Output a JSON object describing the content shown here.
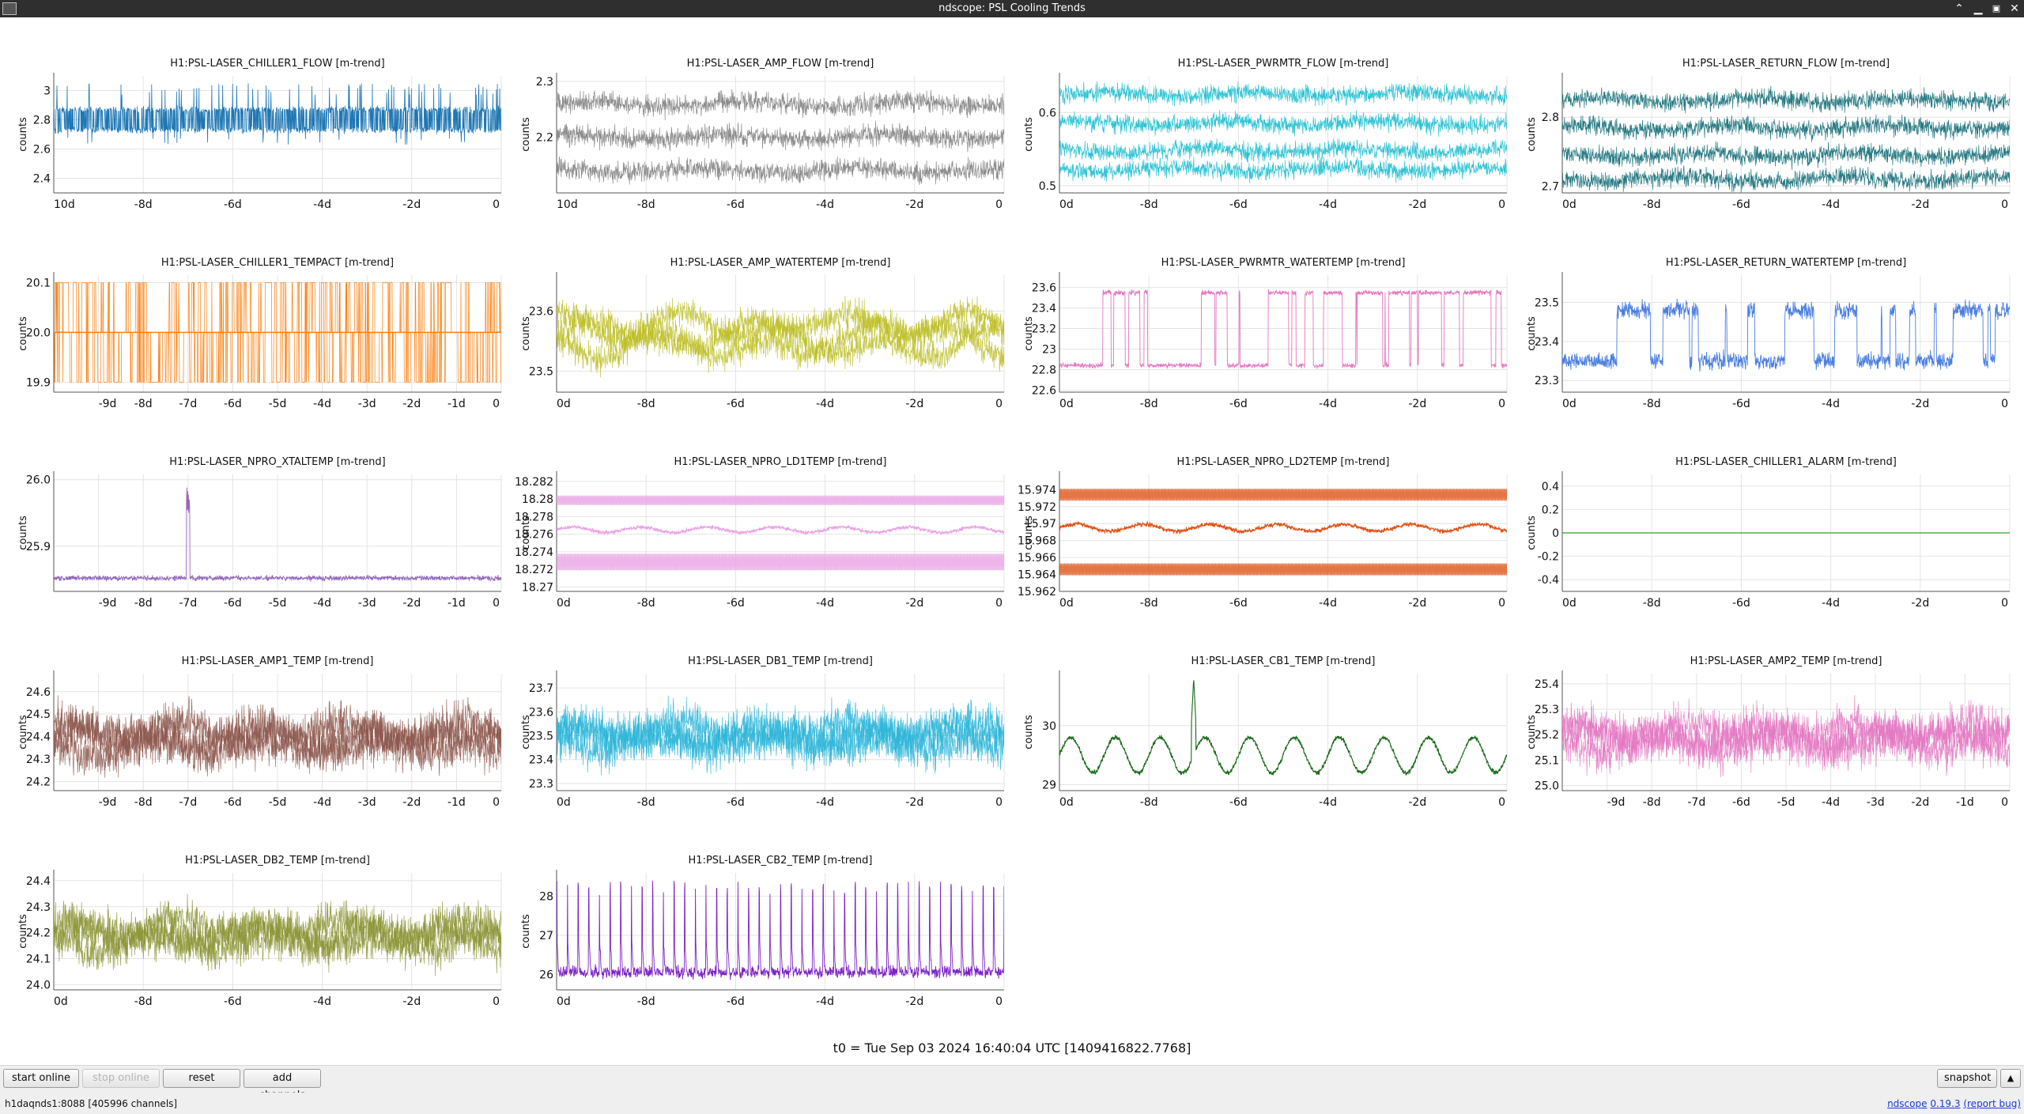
{
  "window": {
    "title": "ndscope: PSL Cooling Trends"
  },
  "t0_label": "t0 = Tue Sep 03 2024 16:40:04 UTC [1409416822.7768]",
  "toolbar": {
    "start_online": "start online",
    "stop_online": "stop online",
    "reset": "reset",
    "add_channels": "add channels",
    "snapshot": "snapshot"
  },
  "status": {
    "server": "h1daqnds1:8088",
    "channels": "[405996 channels]",
    "app_name": "ndscope",
    "version": "0.19.3",
    "report_bug": "(report bug)"
  },
  "plots": [
    {
      "title": "H1:PSL-LASER_CHILLER1_FLOW [m-trend]",
      "color": "#1f77b4",
      "ylabel": "counts",
      "x_ticks": [
        "10d",
        "-8d",
        "-6d",
        "-4d",
        "-2d",
        "0"
      ],
      "x_tick_values": [
        -10,
        -8,
        -6,
        -4,
        -2,
        0
      ],
      "y_ticks": [
        "2.4",
        "2.6",
        "2.8",
        "3"
      ],
      "y_tick_values": [
        2.4,
        2.6,
        2.8,
        3.0
      ],
      "ylim": [
        2.3,
        3.1
      ],
      "pattern": "dense_band",
      "band": [
        2.72,
        2.88
      ],
      "noise": 0.05,
      "spike_top": 3.05,
      "spike_bottom": 2.63
    },
    {
      "title": "H1:PSL-LASER_AMP_FLOW [m-trend]",
      "color": "#7f7f7f",
      "ylabel": "counts",
      "x_ticks": [
        "10d",
        "-8d",
        "-6d",
        "-4d",
        "-2d",
        "0"
      ],
      "x_tick_values": [
        -10,
        -8,
        -6,
        -4,
        -2,
        0
      ],
      "y_ticks": [
        "2.2",
        "2.3"
      ],
      "y_tick_values": [
        2.2,
        2.3
      ],
      "ylim": [
        2.1,
        2.31
      ],
      "pattern": "multiband",
      "levels": [
        2.26,
        2.2,
        2.14
      ],
      "noise": 0.015
    },
    {
      "title": "H1:PSL-LASER_PWRMTR_FLOW [m-trend]",
      "color": "#17becf",
      "ylabel": "counts",
      "x_ticks": [
        "0d",
        "-8d",
        "-6d",
        "-4d",
        "-2d",
        "0"
      ],
      "x_tick_values": [
        -10,
        -8,
        -6,
        -4,
        -2,
        0
      ],
      "y_ticks": [
        "0.5",
        "0.6"
      ],
      "y_tick_values": [
        0.5,
        0.6
      ],
      "ylim": [
        0.49,
        0.65
      ],
      "pattern": "multiband",
      "levels": [
        0.625,
        0.585,
        0.548,
        0.522
      ],
      "noise": 0.01
    },
    {
      "title": "H1:PSL-LASER_RETURN_FLOW [m-trend]",
      "color": "#0f6b75",
      "ylabel": "counts",
      "x_ticks": [
        "0d",
        "-8d",
        "-6d",
        "-4d",
        "-2d",
        "0"
      ],
      "x_tick_values": [
        -10,
        -8,
        -6,
        -4,
        -2,
        0
      ],
      "y_ticks": [
        "2.7",
        "2.8"
      ],
      "y_tick_values": [
        2.7,
        2.8
      ],
      "ylim": [
        2.69,
        2.86
      ],
      "pattern": "multiband",
      "levels": [
        2.825,
        2.785,
        2.745,
        2.71
      ],
      "noise": 0.011
    },
    {
      "title": "H1:PSL-LASER_CHILLER1_TEMPACT [m-trend]",
      "color": "#ff7f0e",
      "ylabel": "counts",
      "x_ticks": [
        "-9d",
        "-8d",
        "-7d",
        "-6d",
        "-5d",
        "-4d",
        "-3d",
        "-2d",
        "-1d",
        "0"
      ],
      "x_tick_values": [
        -9,
        -8,
        -7,
        -6,
        -5,
        -4,
        -3,
        -2,
        -1,
        0
      ],
      "y_ticks": [
        "19.9",
        "20.0",
        "20.1"
      ],
      "y_tick_values": [
        19.9,
        20.0,
        20.1
      ],
      "ylim": [
        19.88,
        20.115
      ],
      "pattern": "digital",
      "levels": [
        19.9,
        20.0,
        20.1
      ]
    },
    {
      "title": "H1:PSL-LASER_AMP_WATERTEMP [m-trend]",
      "color": "#bcbd22",
      "ylabel": "counts",
      "x_ticks": [
        "0d",
        "-8d",
        "-6d",
        "-4d",
        "-2d",
        "0"
      ],
      "x_tick_values": [
        -10,
        -8,
        -6,
        -4,
        -2,
        0
      ],
      "y_ticks": [
        "23.5",
        "23.6"
      ],
      "y_tick_values": [
        23.5,
        23.6
      ],
      "ylim": [
        23.465,
        23.66
      ],
      "pattern": "noisy_wander",
      "base": 23.56,
      "wander": 0.025,
      "noise": 0.02
    },
    {
      "title": "H1:PSL-LASER_PWRMTR_WATERTEMP [m-trend]",
      "color": "#e377c2",
      "ylabel": "counts",
      "x_ticks": [
        "0d",
        "-8d",
        "-6d",
        "-4d",
        "-2d",
        "0"
      ],
      "x_tick_values": [
        -10,
        -8,
        -6,
        -4,
        -2,
        0
      ],
      "y_ticks": [
        "22.6",
        "22.8",
        "23",
        "23.2",
        "23.4",
        "23.6"
      ],
      "y_tick_values": [
        22.6,
        22.8,
        23.0,
        23.2,
        23.4,
        23.6
      ],
      "ylim": [
        22.58,
        23.72
      ],
      "pattern": "square",
      "low": 22.84,
      "high": 23.55,
      "noise": 0.02
    },
    {
      "title": "H1:PSL-LASER_RETURN_WATERTEMP [m-trend]",
      "color": "#4c7fe0",
      "ylabel": "counts",
      "x_ticks": [
        "0d",
        "-8d",
        "-6d",
        "-4d",
        "-2d",
        "0"
      ],
      "x_tick_values": [
        -10,
        -8,
        -6,
        -4,
        -2,
        0
      ],
      "y_ticks": [
        "23.3",
        "23.4",
        "23.5"
      ],
      "y_tick_values": [
        23.3,
        23.4,
        23.5
      ],
      "ylim": [
        23.27,
        23.57
      ],
      "pattern": "square",
      "low": 23.35,
      "high": 23.48,
      "noise": 0.018
    },
    {
      "title": "H1:PSL-LASER_NPRO_XTALTEMP [m-trend]",
      "color": "#9467bd",
      "ylabel": "counts",
      "x_ticks": [
        "-9d",
        "-8d",
        "-7d",
        "-6d",
        "-5d",
        "-4d",
        "-3d",
        "-2d",
        "-1d",
        "0"
      ],
      "x_tick_values": [
        -9,
        -8,
        -7,
        -6,
        -5,
        -4,
        -3,
        -2,
        -1,
        0
      ],
      "y_ticks": [
        "25.9",
        "26.0"
      ],
      "y_tick_values": [
        25.9,
        26.0
      ],
      "ylim": [
        25.832,
        26.008
      ],
      "pattern": "flat_spike",
      "base": 25.852,
      "noise": 0.003,
      "spike_x": -7.0,
      "spike_y": 25.99
    },
    {
      "title": "H1:PSL-LASER_NPRO_LD1TEMP [m-trend]",
      "color": "#e8a3e3",
      "ylabel": "counts",
      "x_ticks": [
        "0d",
        "-8d",
        "-6d",
        "-4d",
        "-2d",
        "0"
      ],
      "x_tick_values": [
        -10,
        -8,
        -6,
        -4,
        -2,
        0
      ],
      "y_ticks": [
        "18.27",
        "18.272",
        "18.274",
        "18.276",
        "18.278",
        "18.28",
        "18.282"
      ],
      "y_tick_values": [
        18.27,
        18.272,
        18.274,
        18.276,
        18.278,
        18.28,
        18.282
      ],
      "ylim": [
        18.2695,
        18.2828
      ],
      "pattern": "quantized",
      "bands": [
        [
          18.2793,
          18.2804
        ],
        [
          18.2719,
          18.2738
        ]
      ],
      "mid": 18.2765,
      "mid_noise": 0.0004
    },
    {
      "title": "H1:PSL-LASER_NPRO_LD2TEMP [m-trend]",
      "color": "#dd5417",
      "ylabel": "counts",
      "x_ticks": [
        "0d",
        "-8d",
        "-6d",
        "-4d",
        "-2d",
        "0"
      ],
      "x_tick_values": [
        -10,
        -8,
        -6,
        -4,
        -2,
        0
      ],
      "y_ticks": [
        "15.962",
        "15.964",
        "15.966",
        "15.968",
        "15.97",
        "15.972",
        "15.974"
      ],
      "y_tick_values": [
        15.962,
        15.964,
        15.966,
        15.968,
        15.97,
        15.972,
        15.974
      ],
      "ylim": [
        15.962,
        15.9758
      ],
      "pattern": "quantized",
      "bands": [
        [
          15.9727,
          15.9741
        ],
        [
          15.9639,
          15.9653
        ]
      ],
      "mid": 15.9695,
      "mid_noise": 0.0005
    },
    {
      "title": "H1:PSL-LASER_CHILLER1_ALARM [m-trend]",
      "color": "#2ca02c",
      "ylabel": "counts",
      "x_ticks": [
        "0d",
        "-8d",
        "-6d",
        "-4d",
        "-2d",
        "0"
      ],
      "x_tick_values": [
        -10,
        -8,
        -6,
        -4,
        -2,
        0
      ],
      "y_ticks": [
        "-0.4",
        "-0.2",
        "0",
        "0.2",
        "0.4"
      ],
      "y_tick_values": [
        -0.4,
        -0.2,
        0,
        0.2,
        0.4
      ],
      "ylim": [
        -0.5,
        0.5
      ],
      "pattern": "flat",
      "base": 0
    },
    {
      "title": "H1:PSL-LASER_AMP1_TEMP [m-trend]",
      "color": "#8c564b",
      "ylabel": "counts",
      "x_ticks": [
        "-9d",
        "-8d",
        "-7d",
        "-6d",
        "-5d",
        "-4d",
        "-3d",
        "-2d",
        "-1d",
        "0"
      ],
      "x_tick_values": [
        -9,
        -8,
        -7,
        -6,
        -5,
        -4,
        -3,
        -2,
        -1,
        0
      ],
      "y_ticks": [
        "24.2",
        "24.3",
        "24.4",
        "24.5",
        "24.6"
      ],
      "y_tick_values": [
        24.2,
        24.3,
        24.4,
        24.5,
        24.6
      ],
      "ylim": [
        24.16,
        24.68
      ],
      "pattern": "noisy_wander",
      "base": 24.39,
      "wander": 0.05,
      "noise": 0.075
    },
    {
      "title": "H1:PSL-LASER_DB1_TEMP [m-trend]",
      "color": "#2bb5d8",
      "ylabel": "counts",
      "x_ticks": [
        "0d",
        "-8d",
        "-6d",
        "-4d",
        "-2d",
        "0"
      ],
      "x_tick_values": [
        -10,
        -8,
        -6,
        -4,
        -2,
        0
      ],
      "y_ticks": [
        "23.3",
        "23.4",
        "23.5",
        "23.6",
        "23.7"
      ],
      "y_tick_values": [
        23.3,
        23.4,
        23.5,
        23.6,
        23.7
      ],
      "ylim": [
        23.27,
        23.76
      ],
      "pattern": "noisy_wander",
      "base": 23.5,
      "wander": 0.04,
      "noise": 0.07
    },
    {
      "title": "H1:PSL-LASER_CB1_TEMP [m-trend]",
      "color": "#1a6b1a",
      "ylabel": "counts",
      "x_ticks": [
        "0d",
        "-8d",
        "-6d",
        "-4d",
        "-2d",
        "0"
      ],
      "x_tick_values": [
        -10,
        -8,
        -6,
        -4,
        -2,
        0
      ],
      "y_ticks": [
        "29",
        "30"
      ],
      "y_tick_values": [
        29,
        30
      ],
      "ylim": [
        28.9,
        30.88
      ],
      "pattern": "daily_wave",
      "base": 29.5,
      "amp": 0.3,
      "noise": 0.03,
      "spike_x": -7.0,
      "spike_y": 30.8
    },
    {
      "title": "H1:PSL-LASER_AMP2_TEMP [m-trend]",
      "color": "#e377c2",
      "ylabel": "counts",
      "x_ticks": [
        "-9d",
        "-8d",
        "-7d",
        "-6d",
        "-5d",
        "-4d",
        "-3d",
        "-2d",
        "-1d",
        "0"
      ],
      "x_tick_values": [
        -9,
        -8,
        -7,
        -6,
        -5,
        -4,
        -3,
        -2,
        -1,
        0
      ],
      "y_ticks": [
        "25.0",
        "25.1",
        "25.2",
        "25.3",
        "25.4"
      ],
      "y_tick_values": [
        25.0,
        25.1,
        25.2,
        25.3,
        25.4
      ],
      "ylim": [
        24.98,
        25.44
      ],
      "pattern": "noisy_wander",
      "base": 25.19,
      "wander": 0.04,
      "noise": 0.065
    },
    {
      "title": "H1:PSL-LASER_DB2_TEMP [m-trend]",
      "color": "#8b9434",
      "ylabel": "counts",
      "x_ticks": [
        "0d",
        "-8d",
        "-6d",
        "-4d",
        "-2d",
        "0"
      ],
      "x_tick_values": [
        -10,
        -8,
        -6,
        -4,
        -2,
        0
      ],
      "y_ticks": [
        "24.0",
        "24.1",
        "24.2",
        "24.3",
        "24.4"
      ],
      "y_tick_values": [
        24.0,
        24.1,
        24.2,
        24.3,
        24.4
      ],
      "ylim": [
        23.98,
        24.43
      ],
      "pattern": "noisy_wander",
      "base": 24.19,
      "wander": 0.04,
      "noise": 0.06
    },
    {
      "title": "H1:PSL-LASER_CB2_TEMP [m-trend]",
      "color": "#7b22c4",
      "ylabel": "counts",
      "x_ticks": [
        "0d",
        "-8d",
        "-6d",
        "-4d",
        "-2d",
        "0"
      ],
      "x_tick_values": [
        -10,
        -8,
        -6,
        -4,
        -2,
        0
      ],
      "y_ticks": [
        "26",
        "27",
        "28"
      ],
      "y_tick_values": [
        26,
        27,
        28
      ],
      "ylim": [
        25.6,
        28.6
      ],
      "pattern": "spikes",
      "base": 26.05,
      "peak": 28.4,
      "noise": 0.12
    }
  ]
}
